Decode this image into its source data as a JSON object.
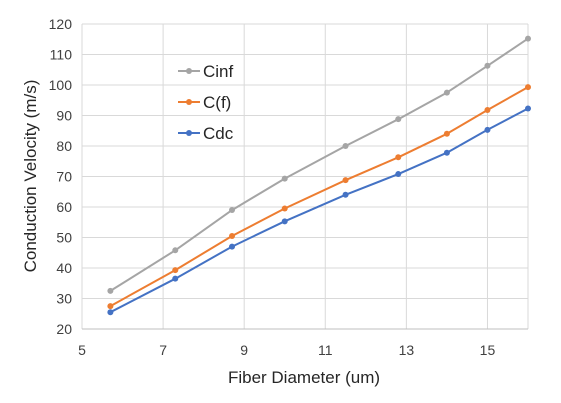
{
  "chart_data": {
    "type": "line",
    "xlabel": "Fiber Diameter (um)",
    "ylabel": "Conduction Velocity (m/s)",
    "xlim": [
      5,
      16
    ],
    "ylim": [
      20,
      120
    ],
    "xticks": [
      5,
      7,
      9,
      11,
      13,
      15
    ],
    "yticks": [
      20,
      30,
      40,
      50,
      60,
      70,
      80,
      90,
      100,
      110,
      120
    ],
    "grid": true,
    "legend_position": "upper-left",
    "x": [
      5.7,
      7.3,
      8.7,
      10.0,
      11.5,
      12.8,
      14.0,
      15.0,
      16.0
    ],
    "series": [
      {
        "name": "Cinf",
        "color": "#a5a5a5",
        "values": [
          32.5,
          45.8,
          59.0,
          69.3,
          80.0,
          88.8,
          97.5,
          106.3,
          115.2
        ]
      },
      {
        "name": "C(f)",
        "color": "#ed7d31",
        "values": [
          27.5,
          39.3,
          50.5,
          59.5,
          68.8,
          76.3,
          84.0,
          91.8,
          99.3
        ]
      },
      {
        "name": "Cdc",
        "color": "#4472c4",
        "values": [
          25.5,
          36.5,
          47.0,
          55.3,
          64.0,
          70.8,
          77.8,
          85.3,
          92.3
        ]
      }
    ]
  }
}
